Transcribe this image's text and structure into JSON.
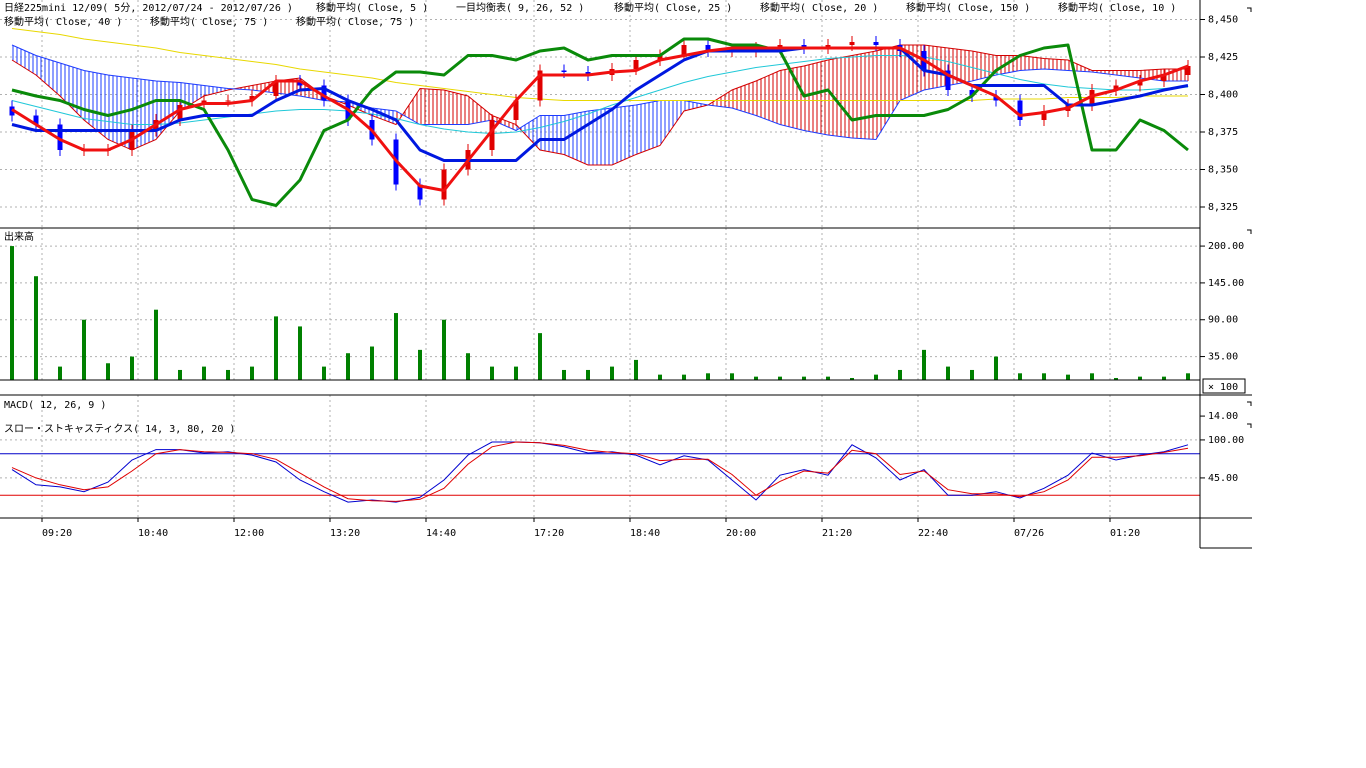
{
  "chart_data": [
    {
      "type": "candlestick",
      "title": "日経225mini 12/09( 5分, 2012/07/24 - 2012/07/26 )",
      "indicators": [
        "移動平均( Close, 5 )",
        "一目均衡表( 9, 26, 52 )",
        "移動平均( Close, 25 )",
        "移動平均( Close, 20 )",
        "移動平均( Close, 150 )",
        "移動平均( Close, 10 )",
        "移動平均( Close, 40 )",
        "移動平均( Close, 75 )",
        "移動平均( Close, 75 )"
      ],
      "x": [
        -5,
        -1,
        3,
        7,
        11,
        15,
        19,
        23,
        27,
        31,
        35,
        39,
        43,
        47,
        51,
        55,
        59,
        63,
        67,
        71,
        75,
        79,
        83,
        87,
        91,
        95,
        99,
        103,
        107,
        111,
        115,
        119,
        123,
        127,
        131,
        135,
        139,
        143,
        147,
        151,
        155,
        159,
        163,
        167,
        171,
        175,
        179,
        183,
        187,
        191
      ],
      "xlim": [
        -7,
        193
      ],
      "xticks": [
        {
          "value": 0,
          "label": "09:20"
        },
        {
          "value": 16,
          "label": "10:40"
        },
        {
          "value": 32,
          "label": "12:00"
        },
        {
          "value": 48,
          "label": "13:20"
        },
        {
          "value": 64,
          "label": "14:40"
        },
        {
          "value": 82,
          "label": "17:20"
        },
        {
          "value": 98,
          "label": "18:40"
        },
        {
          "value": 114,
          "label": "20:00"
        },
        {
          "value": 130,
          "label": "21:20"
        },
        {
          "value": 146,
          "label": "22:40"
        },
        {
          "value": 162,
          "label": "07/26"
        },
        {
          "value": 178,
          "label": "01:20"
        }
      ],
      "ylim": [
        8311,
        8463
      ],
      "yticks": [
        {
          "value": 8450,
          "label": "8,450"
        },
        {
          "value": 8425,
          "label": "8,425"
        },
        {
          "value": 8400,
          "label": "8,400"
        },
        {
          "value": 8375,
          "label": "8,375"
        },
        {
          "value": 8350,
          "label": "8,350"
        },
        {
          "value": 8325,
          "label": "8,325"
        }
      ],
      "grid": true,
      "up_color": "#e00000",
      "down_color": "#0000ff",
      "open": [
        8392,
        8386,
        8380,
        8363,
        8363,
        8363,
        8376,
        8383,
        8393,
        8396,
        8396,
        8399,
        8409,
        8406,
        8396,
        8383,
        8370,
        8340,
        8330,
        8350,
        8363,
        8383,
        8396,
        8416,
        8415,
        8413,
        8417,
        8423,
        8426,
        8433,
        8429,
        8429,
        8431,
        8433,
        8431,
        8433,
        8435,
        8433,
        8429,
        8416,
        8403,
        8399,
        8396,
        8383,
        8389,
        8393,
        8403,
        8406,
        8409,
        8413
      ],
      "high": [
        8396,
        8390,
        8384,
        8367,
        8367,
        8380,
        8387,
        8397,
        8400,
        8400,
        8403,
        8413,
        8413,
        8410,
        8400,
        8387,
        8374,
        8344,
        8354,
        8367,
        8387,
        8400,
        8420,
        8420,
        8419,
        8421,
        8427,
        8430,
        8437,
        8437,
        8433,
        8435,
        8437,
        8437,
        8437,
        8439,
        8439,
        8437,
        8433,
        8420,
        8407,
        8403,
        8400,
        8393,
        8397,
        8407,
        8410,
        8413,
        8417,
        8423
      ],
      "low": [
        8382,
        8376,
        8359,
        8359,
        8359,
        8359,
        8372,
        8379,
        8389,
        8392,
        8392,
        8395,
        8402,
        8392,
        8379,
        8366,
        8336,
        8326,
        8326,
        8346,
        8359,
        8379,
        8392,
        8411,
        8409,
        8409,
        8413,
        8419,
        8422,
        8425,
        8425,
        8425,
        8427,
        8427,
        8427,
        8429,
        8429,
        8425,
        8412,
        8399,
        8395,
        8392,
        8379,
        8379,
        8385,
        8389,
        8399,
        8402,
        8405,
        8409
      ],
      "close": [
        8386,
        8380,
        8363,
        8363,
        8363,
        8376,
        8383,
        8393,
        8396,
        8396,
        8399,
        8409,
        8406,
        8396,
        8383,
        8370,
        8340,
        8330,
        8350,
        8363,
        8383,
        8396,
        8416,
        8415,
        8413,
        8417,
        8423,
        8426,
        8433,
        8429,
        8429,
        8431,
        8433,
        8431,
        8433,
        8435,
        8433,
        8429,
        8416,
        8403,
        8399,
        8396,
        8383,
        8389,
        8393,
        8403,
        8406,
        8409,
        8413,
        8419
      ],
      "cloud": {
        "a_above_color": "#d40000",
        "b_above_color": "#1e3cff",
        "span_a": [
          8423,
          8413,
          8399,
          8383,
          8370,
          8363,
          8370,
          8389,
          8399,
          8403,
          8406,
          8409,
          8411,
          8399,
          8393,
          8386,
          8380,
          8404,
          8403,
          8399,
          8386,
          8380,
          8363,
          8360,
          8353,
          8353,
          8360,
          8366,
          8389,
          8393,
          8403,
          8409,
          8416,
          8419,
          8423,
          8426,
          8429,
          8433,
          8433,
          8431,
          8429,
          8426,
          8426,
          8424,
          8423,
          8416,
          8416,
          8416,
          8417,
          8417
        ],
        "span_b": [
          8433,
          8426,
          8421,
          8416,
          8413,
          8411,
          8409,
          8408,
          8406,
          8404,
          8403,
          8401,
          8399,
          8396,
          8395,
          8391,
          8389,
          8380,
          8380,
          8380,
          8383,
          8376,
          8386,
          8386,
          8389,
          8391,
          8393,
          8396,
          8396,
          8393,
          8391,
          8386,
          8380,
          8376,
          8373,
          8371,
          8370,
          8396,
          8403,
          8406,
          8409,
          8413,
          8416,
          8417,
          8416,
          8415,
          8413,
          8411,
          8409,
          8409
        ]
      },
      "lines": [
        {
          "color": "#e8d800",
          "width": 1,
          "values": [
            8444,
            8442,
            8440,
            8437,
            8435,
            8433,
            8431,
            8428,
            8426,
            8424,
            8422,
            8420,
            8417,
            8415,
            8413,
            8411,
            8408,
            8406,
            8404,
            8402,
            8400,
            8398,
            8397,
            8396,
            8396,
            8396,
            8396,
            8396,
            8396,
            8396,
            8396,
            8396,
            8396,
            8396,
            8396,
            8396,
            8396,
            8396,
            8396,
            8396,
            8396,
            8397,
            8397,
            8397,
            8398,
            8398,
            8398,
            8399,
            8399,
            8399
          ]
        },
        {
          "color": "#20c8d8",
          "width": 1,
          "values": [
            8396,
            8392,
            8388,
            8384,
            8382,
            8380,
            8380,
            8381,
            8383,
            8385,
            8387,
            8389,
            8390,
            8390,
            8389,
            8387,
            8384,
            8380,
            8377,
            8375,
            8374,
            8375,
            8378,
            8382,
            8387,
            8393,
            8398,
            8403,
            8408,
            8412,
            8415,
            8418,
            8420,
            8422,
            8424,
            8425,
            8426,
            8426,
            8425,
            8422,
            8418,
            8414,
            8410,
            8407,
            8405,
            8404,
            8403,
            8403,
            8404,
            8405
          ]
        },
        {
          "color": "#0a8a0a",
          "width": 3,
          "values": [
            8403,
            8399,
            8396,
            8390,
            8386,
            8390,
            8396,
            8396,
            8390,
            8363,
            8330,
            8326,
            8343,
            8376,
            8383,
            8403,
            8415,
            8415,
            8413,
            8426,
            8426,
            8423,
            8429,
            8431,
            8423,
            8426,
            8426,
            8426,
            8437,
            8437,
            8433,
            8433,
            8429,
            8399,
            8403,
            8383,
            8386,
            8386,
            8386,
            8390,
            8399,
            8416,
            8426,
            8431,
            8433,
            8363,
            8363,
            8383,
            8376,
            8363
          ]
        },
        {
          "color": "#0018e0",
          "width": 3,
          "values": [
            8380,
            8376,
            8376,
            8376,
            8376,
            8376,
            8376,
            8383,
            8386,
            8386,
            8386,
            8396,
            8403,
            8404,
            8396,
            8390,
            8383,
            8363,
            8356,
            8356,
            8356,
            8356,
            8370,
            8370,
            8380,
            8390,
            8403,
            8413,
            8423,
            8429,
            8429,
            8429,
            8429,
            8431,
            8431,
            8431,
            8431,
            8431,
            8416,
            8413,
            8406,
            8406,
            8406,
            8406,
            8393,
            8393,
            8396,
            8399,
            8403,
            8406
          ]
        },
        {
          "color": "#f01010",
          "width": 3,
          "values": [
            8390,
            8380,
            8370,
            8363,
            8363,
            8370,
            8380,
            8390,
            8394,
            8394,
            8396,
            8409,
            8409,
            8399,
            8390,
            8376,
            8356,
            8339,
            8336,
            8356,
            8376,
            8396,
            8413,
            8413,
            8413,
            8415,
            8416,
            8423,
            8426,
            8429,
            8431,
            8431,
            8431,
            8431,
            8431,
            8431,
            8431,
            8431,
            8423,
            8413,
            8406,
            8399,
            8386,
            8388,
            8391,
            8399,
            8403,
            8409,
            8413,
            8419
          ]
        }
      ]
    },
    {
      "type": "bar",
      "title": "出来高",
      "unit_label": "× 100",
      "color": "#008000",
      "ylim": [
        0,
        227
      ],
      "yticks": [
        {
          "value": 200,
          "label": "200.00"
        },
        {
          "value": 145,
          "label": "145.00"
        },
        {
          "value": 90,
          "label": "90.00"
        },
        {
          "value": 35,
          "label": "35.00"
        }
      ],
      "values": [
        200,
        155,
        20,
        90,
        25,
        35,
        105,
        15,
        20,
        15,
        20,
        95,
        80,
        20,
        40,
        50,
        100,
        45,
        90,
        40,
        20,
        20,
        70,
        15,
        15,
        20,
        30,
        8,
        8,
        10,
        10,
        5,
        5,
        5,
        5,
        3,
        8,
        15,
        45,
        20,
        15,
        35,
        10,
        10,
        8,
        10,
        3,
        5,
        5,
        10
      ]
    },
    {
      "type": "line",
      "title": "スロー・ストキャスティクス( 14, 3, 80, 20 )",
      "macd_title": "MACD( 12, 26, 9 )",
      "macd_ylim": [
        -15,
        20
      ],
      "macd_yticks": [
        {
          "value": 14,
          "label": "14.00"
        }
      ],
      "ylim": [
        -13,
        165
      ],
      "yticks": [
        {
          "value": 100,
          "label": "100.00"
        },
        {
          "value": 45,
          "label": "45.00"
        }
      ],
      "levels": [
        {
          "value": 80,
          "color": "#0000c8"
        },
        {
          "value": 20,
          "color": "#e00000"
        }
      ],
      "series": [
        {
          "color": "#0000d0",
          "values": [
            57,
            35,
            32,
            25,
            39,
            71,
            86,
            86,
            81,
            83,
            78,
            68,
            42,
            25,
            10,
            13,
            10,
            17,
            42,
            78,
            97,
            97,
            96,
            90,
            81,
            83,
            78,
            64,
            77,
            71,
            42,
            13,
            49,
            57,
            49,
            93,
            74,
            42,
            57,
            20,
            20,
            25,
            16,
            30,
            49,
            81,
            71,
            78,
            83,
            93
          ]
        },
        {
          "color": "#e00000",
          "values": [
            60,
            45,
            35,
            28,
            32,
            55,
            80,
            86,
            83,
            82,
            80,
            72,
            52,
            32,
            15,
            12,
            11,
            14,
            30,
            65,
            90,
            97,
            96,
            92,
            85,
            82,
            80,
            70,
            72,
            72,
            50,
            20,
            40,
            55,
            52,
            85,
            80,
            50,
            55,
            28,
            22,
            22,
            18,
            25,
            42,
            75,
            75,
            77,
            82,
            88
          ]
        }
      ]
    }
  ]
}
